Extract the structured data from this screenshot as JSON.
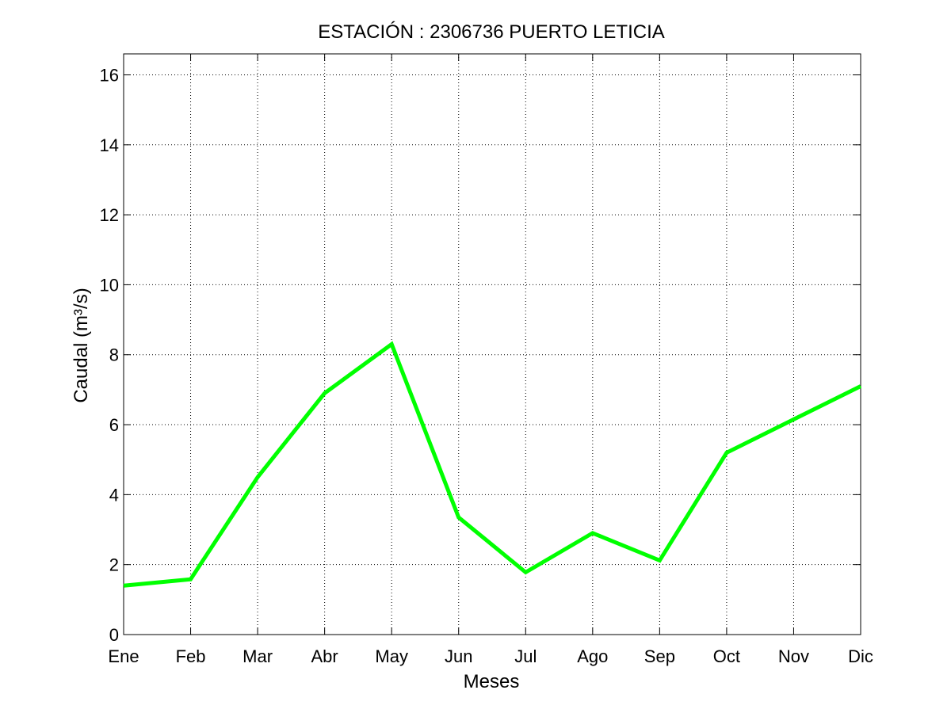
{
  "chart_data": {
    "type": "line",
    "title": "ESTACIÓN :  2306736  PUERTO LETICIA",
    "xlabel": "Meses",
    "ylabel": "Caudal (m³/s)",
    "categories": [
      "Ene",
      "Feb",
      "Mar",
      "Abr",
      "May",
      "Jun",
      "Jul",
      "Ago",
      "Sep",
      "Oct",
      "Nov",
      "Dic"
    ],
    "series": [
      {
        "values": [
          1.4,
          1.58,
          4.5,
          6.9,
          8.3,
          3.35,
          1.78,
          2.9,
          2.12,
          5.2,
          6.15,
          7.1
        ],
        "color": "#00ff00"
      }
    ],
    "ylim": [
      0,
      16.6
    ],
    "yticks": [
      0,
      2,
      4,
      6,
      8,
      10,
      12,
      14,
      16
    ],
    "grid": true
  }
}
